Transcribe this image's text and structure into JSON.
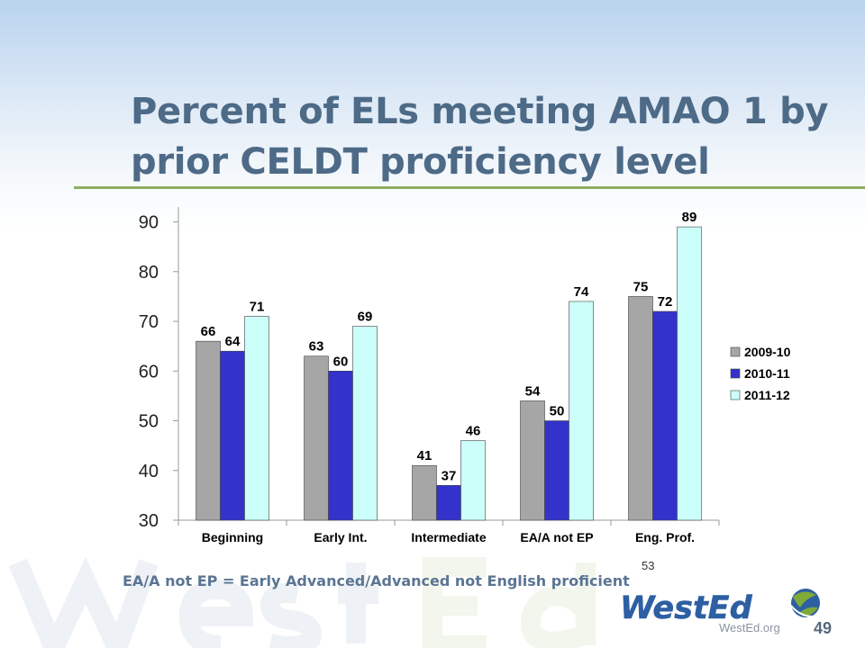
{
  "slide": {
    "title_line1": "Percent of ELs meeting AMAO 1 by",
    "title_line2": "prior CELDT proficiency level",
    "footnote": "EA/A not EP = Early Advanced/Advanced not English proficient",
    "source_page_number": "53",
    "logo_text": "WestEd",
    "logo_url": "WestEd.org",
    "slide_number": "49"
  },
  "colors": {
    "title": "#4d6a87",
    "rule": "#8fad5e",
    "series_2009_10": "#a6a6a6",
    "series_2010_11": "#3333cc",
    "series_2011_12": "#ccfff9",
    "logo_blue": "#2d5fa3",
    "logo_green": "#7faa3a"
  },
  "chart_data": {
    "type": "bar",
    "categories": [
      "Beginning",
      "Early Int.",
      "Intermediate",
      "EA/A not EP",
      "Eng. Prof."
    ],
    "series": [
      {
        "name": "2009-10",
        "values": [
          66,
          63,
          41,
          54,
          75
        ]
      },
      {
        "name": "2010-11",
        "values": [
          64,
          60,
          37,
          50,
          72
        ]
      },
      {
        "name": "2011-12",
        "values": [
          71,
          69,
          46,
          74,
          89
        ]
      }
    ],
    "ylim": [
      30,
      93
    ],
    "yticks": [
      30,
      40,
      50,
      60,
      70,
      80,
      90
    ],
    "grid": false,
    "legend": "right",
    "data_labels": true,
    "title": "",
    "xlabel": "",
    "ylabel": ""
  }
}
